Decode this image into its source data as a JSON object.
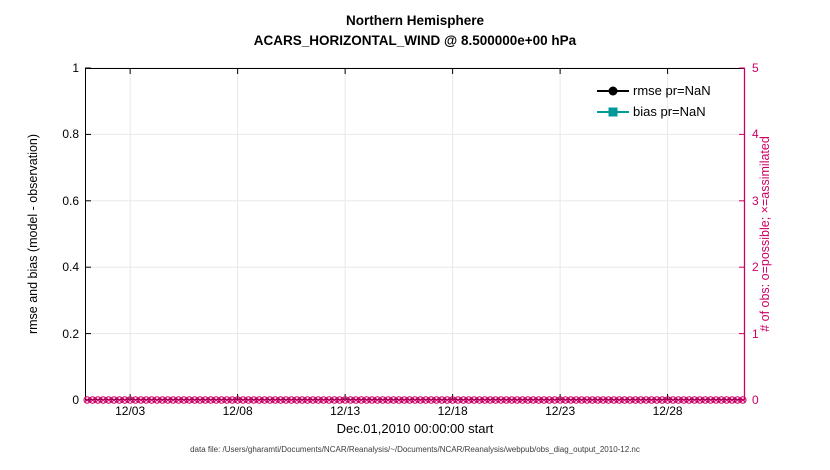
{
  "titles": {
    "line1": "Northern Hemisphere",
    "line2": "ACARS_HORIZONTAL_WIND @ 8.500000e+00 hPa"
  },
  "footer": "data file: /Users/gharamti/Documents/NCAR/Reanalysis/~/Documents/NCAR/Reanalysis/webpub/obs_diag_output_2010-12.nc",
  "colors": {
    "right_axis": "#cc0066",
    "rmse": "#000000",
    "bias": "#009999",
    "grid": "#e8e8e8",
    "axis": "#000000",
    "footer_text": "#3c3c3c"
  },
  "chart_data": {
    "type": "line",
    "title": "Northern Hemisphere",
    "subtitle": "ACARS_HORIZONTAL_WIND @ 8.500000e+00 hPa",
    "xlabel": "Dec.01,2010 00:00:00 start",
    "ylabel_left": "rmse and bias (model - observation)",
    "ylabel_right": "# of obs: o=possible; ×=assimilated",
    "grid": true,
    "legend_position": "top-right-inside",
    "xlim_days": [
      0.9,
      31.6
    ],
    "ylim_left": [
      0,
      1
    ],
    "ylim_right": [
      0,
      5
    ],
    "x_ticks": [
      {
        "day": 3,
        "label": "12/03"
      },
      {
        "day": 8,
        "label": "12/08"
      },
      {
        "day": 13,
        "label": "12/13"
      },
      {
        "day": 18,
        "label": "12/18"
      },
      {
        "day": 23,
        "label": "12/23"
      },
      {
        "day": 28,
        "label": "12/28"
      }
    ],
    "y_ticks_left": [
      {
        "value": 0,
        "label": "0"
      },
      {
        "value": 0.2,
        "label": "0.2"
      },
      {
        "value": 0.4,
        "label": "0.4"
      },
      {
        "value": 0.6,
        "label": "0.6"
      },
      {
        "value": 0.8,
        "label": "0.8"
      },
      {
        "value": 1,
        "label": "1"
      }
    ],
    "y_ticks_right": [
      {
        "value": 0,
        "label": "0"
      },
      {
        "value": 1,
        "label": "1"
      },
      {
        "value": 2,
        "label": "2"
      },
      {
        "value": 3,
        "label": "3"
      },
      {
        "value": 4,
        "label": "4"
      },
      {
        "value": 5,
        "label": "5"
      }
    ],
    "legend": [
      {
        "label": "rmse pr=NaN",
        "color": "#000000",
        "marker": "circle"
      },
      {
        "label": "bias pr=NaN",
        "color": "#009999",
        "marker": "square"
      }
    ],
    "series": [
      {
        "name": "rmse",
        "axis": "left",
        "color": "#000000",
        "marker": "circle",
        "values": null,
        "note": "all values NaN - no curve plotted"
      },
      {
        "name": "bias",
        "axis": "left",
        "color": "#009999",
        "marker": "square",
        "values": null,
        "note": "all values NaN - no curve plotted"
      },
      {
        "name": "obs possible",
        "axis": "right",
        "color": "#cc0066",
        "marker": "o",
        "constant_value": 0
      },
      {
        "name": "obs assimilated",
        "axis": "right",
        "color": "#cc0066",
        "marker": "x",
        "constant_value": 0
      }
    ],
    "obs_markers": {
      "start_day": 1.0,
      "end_day": 31.5,
      "step_days": 0.25,
      "value": 0
    }
  }
}
